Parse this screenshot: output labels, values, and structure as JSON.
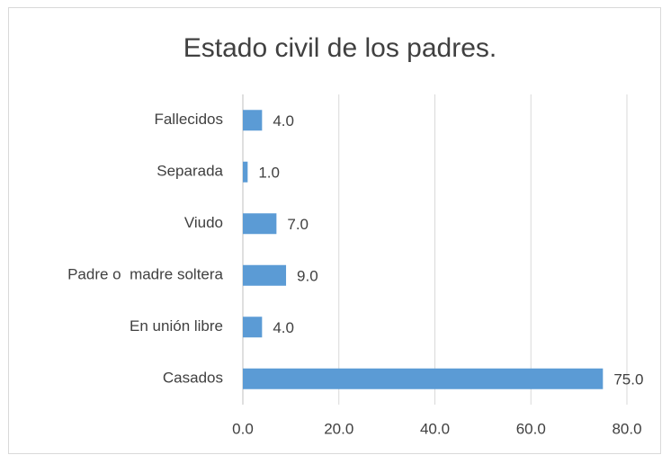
{
  "chart_data": {
    "type": "hbar",
    "title": "Estado civil de los padres.",
    "categories": [
      "Casados",
      "En unión libre",
      "Padre o  madre soltera",
      "Viudo",
      "Separada",
      "Fallecidos"
    ],
    "values": [
      75,
      4,
      9,
      7,
      1,
      4
    ],
    "value_labels": [
      "75.0",
      "4.0",
      "9.0",
      "7.0",
      "1.0",
      "4.0"
    ],
    "color": "#5b9bd5",
    "xlim": [
      0,
      80
    ],
    "xticks": [
      {
        "value": 0,
        "label": "0.0"
      },
      {
        "value": 20,
        "label": "20.0"
      },
      {
        "value": 40,
        "label": "40.0"
      },
      {
        "value": 60,
        "label": "60.0"
      },
      {
        "value": 80,
        "label": "80.0"
      }
    ],
    "grid": true
  }
}
